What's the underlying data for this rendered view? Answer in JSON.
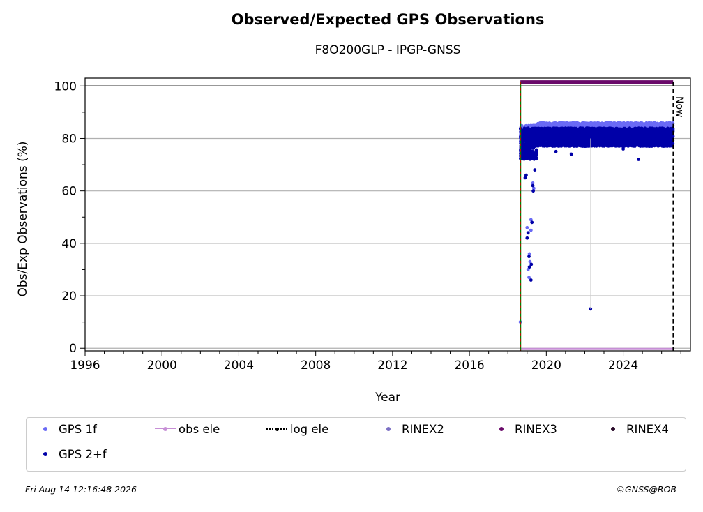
{
  "title": "Observed/Expected GPS Observations",
  "subtitle": "F8O200GLP - IPGP-GNSS",
  "footer_left": "Fri Aug 14 12:16:48 2026",
  "footer_right": "©GNSS@ROB",
  "now_label": "Now",
  "colors": {
    "gps1f": "#6a6af5",
    "gps2f": "#0000a8",
    "obs_ele": "#c78fd6",
    "log_ele": "#000000",
    "rinex2": "#7b6fc4",
    "rinex3": "#6a0a6a",
    "rinex4": "#2a0a2a",
    "green_line": "#008000",
    "red_line": "#d00000"
  },
  "legend": [
    {
      "label": "GPS 1f",
      "key": "gps1f",
      "style": "dot"
    },
    {
      "label": "obs ele",
      "key": "obs_ele",
      "style": "line-dot"
    },
    {
      "label": "log ele",
      "key": "log_ele",
      "style": "dash-dot"
    },
    {
      "label": "RINEX2",
      "key": "rinex2",
      "style": "dot"
    },
    {
      "label": "RINEX3",
      "key": "rinex3",
      "style": "dot"
    },
    {
      "label": "RINEX4",
      "key": "rinex4",
      "style": "dot"
    },
    {
      "label": "GPS 2+f",
      "key": "gps2f",
      "style": "dot"
    }
  ],
  "chart_data": {
    "type": "scatter",
    "title": "Observed/Expected GPS Observations",
    "subtitle": "F8O200GLP - IPGP-GNSS",
    "xlabel": "Year",
    "ylabel": "Obs/Exp Observations (%)",
    "xlim": [
      1996,
      2027.5
    ],
    "ylim": [
      -1,
      103
    ],
    "xticks": [
      1996,
      2000,
      2004,
      2008,
      2012,
      2016,
      2020,
      2024
    ],
    "yticks": [
      0,
      20,
      40,
      60,
      80,
      100
    ],
    "grid": "horizontal",
    "legend_position": "bottom",
    "station_start": 2018.65,
    "now": 2026.6,
    "rinex3_level": 101.5,
    "obs_ele_level": 0,
    "reference_line": 100,
    "series": [
      {
        "name": "GPS 1f",
        "band": [
          {
            "from": 2018.65,
            "to": 2019.5,
            "low": 78,
            "high": 85
          },
          {
            "from": 2019.5,
            "to": 2026.6,
            "low": 80,
            "high": 86
          }
        ],
        "outliers": [
          [
            2018.65,
            10
          ],
          [
            2019.0,
            46
          ],
          [
            2019.2,
            45
          ],
          [
            2019.05,
            30
          ],
          [
            2019.1,
            27
          ],
          [
            2019.15,
            33
          ],
          [
            2019.3,
            63
          ],
          [
            2019.35,
            61
          ],
          [
            2019.2,
            49
          ],
          [
            2019.12,
            36
          ]
        ]
      },
      {
        "name": "GPS 2+f",
        "band": [
          {
            "from": 2018.65,
            "to": 2019.5,
            "low": 72,
            "high": 84
          },
          {
            "from": 2019.5,
            "to": 2026.6,
            "low": 77,
            "high": 84
          }
        ],
        "outliers": [
          [
            2018.68,
            75
          ],
          [
            2018.9,
            65
          ],
          [
            2018.95,
            66
          ],
          [
            2019.0,
            42
          ],
          [
            2019.05,
            44
          ],
          [
            2019.1,
            35
          ],
          [
            2019.12,
            31
          ],
          [
            2019.2,
            26
          ],
          [
            2019.22,
            32
          ],
          [
            2019.25,
            48
          ],
          [
            2019.3,
            62
          ],
          [
            2019.32,
            60
          ],
          [
            2019.4,
            68
          ],
          [
            2020.5,
            75
          ],
          [
            2021.3,
            74
          ],
          [
            2022.3,
            15
          ],
          [
            2024.0,
            76
          ],
          [
            2024.8,
            72
          ],
          [
            2025.5,
            78
          ],
          [
            2026.2,
            79
          ]
        ]
      }
    ]
  }
}
